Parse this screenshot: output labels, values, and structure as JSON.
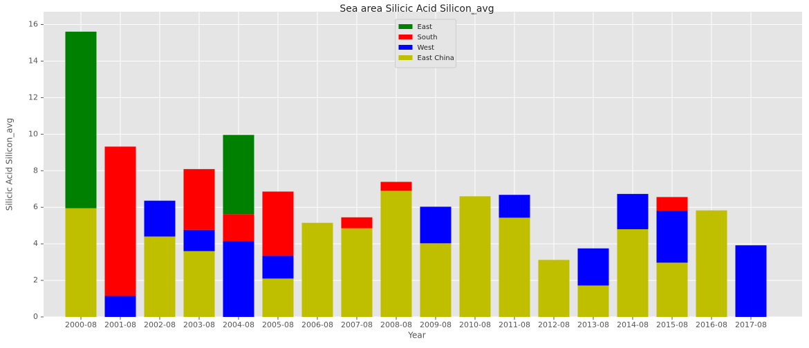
{
  "chart_data": {
    "type": "stacked_bar",
    "title": "Sea area Silicic Acid Silicon_avg",
    "x_label": "Year",
    "y_label": "Silicic Acid Silicon_avg",
    "categories": [
      "2000-08",
      "2001-08",
      "2002-08",
      "2003-08",
      "2004-08",
      "2005-08",
      "2006-08",
      "2007-08",
      "2008-08",
      "2009-08",
      "2010-08",
      "2011-08",
      "2012-08",
      "2013-08",
      "2014-08",
      "2015-08",
      "2016-08",
      "2017-08"
    ],
    "series": [
      {
        "name": "East",
        "color": "#008000",
        "values": [
          9.66,
          null,
          null,
          null,
          4.34,
          null,
          null,
          null,
          null,
          null,
          null,
          null,
          null,
          null,
          null,
          null,
          null,
          null
        ]
      },
      {
        "name": "South",
        "color": "#ff0000",
        "values": [
          null,
          8.17,
          null,
          3.32,
          1.47,
          3.51,
          null,
          0.6,
          0.49,
          null,
          null,
          null,
          null,
          null,
          null,
          0.76,
          null,
          null
        ]
      },
      {
        "name": "West",
        "color": "#0000ff",
        "values": [
          null,
          1.15,
          1.96,
          1.17,
          4.15,
          1.25,
          null,
          null,
          null,
          2.0,
          null,
          1.25,
          null,
          2.03,
          1.93,
          2.83,
          null,
          3.92
        ]
      },
      {
        "name": "East China",
        "color": "#bfbf00",
        "values": [
          5.95,
          null,
          4.4,
          3.6,
          null,
          2.1,
          5.15,
          4.85,
          6.9,
          4.03,
          6.6,
          5.43,
          3.12,
          1.72,
          4.8,
          2.97,
          5.83,
          null
        ]
      }
    ],
    "ylim": [
      0,
      16.7
    ],
    "yticks": [
      0,
      2,
      4,
      6,
      8,
      10,
      12,
      14,
      16
    ],
    "grid": true,
    "legend": "upper center"
  }
}
